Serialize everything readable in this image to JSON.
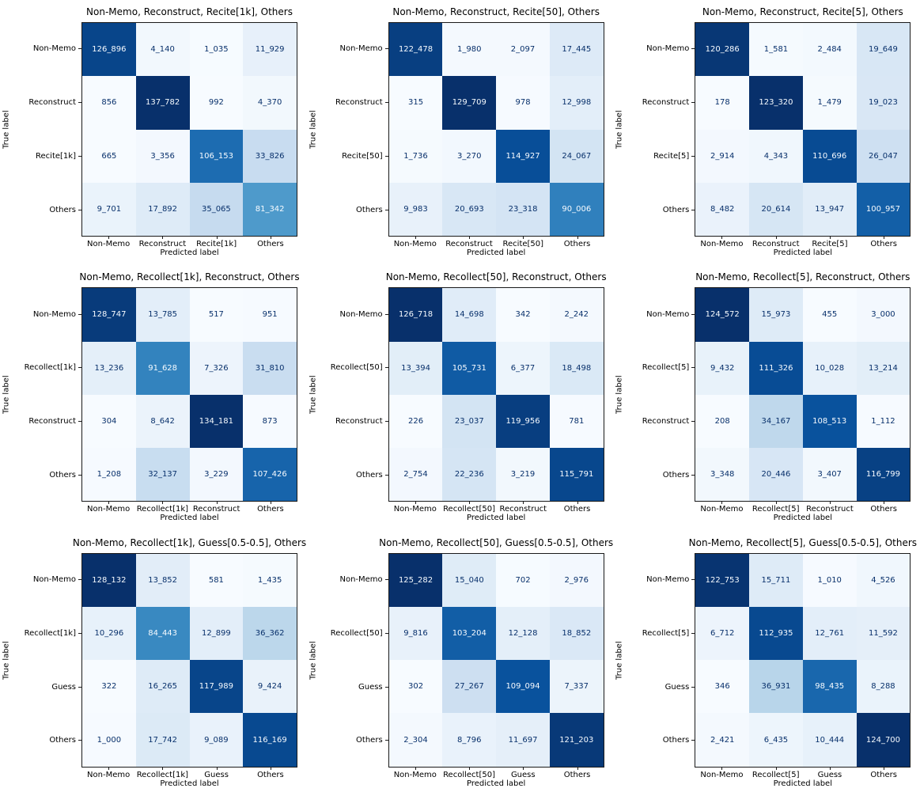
{
  "figure": {
    "type": "confusion-matrix-grid",
    "rows": 3,
    "cols": 3,
    "background": "#ffffff",
    "colormap_name": "Blues",
    "colormap_stops": [
      "#f7fbff",
      "#deebf7",
      "#c6dbef",
      "#9ecae1",
      "#6baed6",
      "#4292c6",
      "#2171b5",
      "#08519c",
      "#08306b"
    ],
    "cell_text_light": "#f7fbff",
    "cell_text_dark": "#08306b",
    "spine_color": "#1a1a1a"
  },
  "chart_data": [
    {
      "type": "heatmap",
      "title": "Non-Memo, Reconstruct, Recite[1k], Others",
      "xlabel": "Predicted label",
      "ylabel": "True label",
      "categories": [
        "Non-Memo",
        "Reconstruct",
        "Recite[1k]",
        "Others"
      ],
      "rows": [
        [
          "126_896",
          "4_140",
          "1_035",
          "11_929"
        ],
        [
          "856",
          "137_782",
          "992",
          "4_370"
        ],
        [
          "665",
          "3_356",
          "106_153",
          "33_826"
        ],
        [
          "9_701",
          "17_892",
          "35_065",
          "81_342"
        ]
      ]
    },
    {
      "type": "heatmap",
      "title": "Non-Memo, Reconstruct, Recite[50], Others",
      "xlabel": "Predicted label",
      "ylabel": "True label",
      "categories": [
        "Non-Memo",
        "Reconstruct",
        "Recite[50]",
        "Others"
      ],
      "rows": [
        [
          "122_478",
          "1_980",
          "2_097",
          "17_445"
        ],
        [
          "315",
          "129_709",
          "978",
          "12_998"
        ],
        [
          "1_736",
          "3_270",
          "114_927",
          "24_067"
        ],
        [
          "9_983",
          "20_693",
          "23_318",
          "90_006"
        ]
      ]
    },
    {
      "type": "heatmap",
      "title": "Non-Memo, Reconstruct, Recite[5], Others",
      "xlabel": "Predicted label",
      "ylabel": "True label",
      "categories": [
        "Non-Memo",
        "Reconstruct",
        "Recite[5]",
        "Others"
      ],
      "rows": [
        [
          "120_286",
          "1_581",
          "2_484",
          "19_649"
        ],
        [
          "178",
          "123_320",
          "1_479",
          "19_023"
        ],
        [
          "2_914",
          "4_343",
          "110_696",
          "26_047"
        ],
        [
          "8_482",
          "20_614",
          "13_947",
          "100_957"
        ]
      ]
    },
    {
      "type": "heatmap",
      "title": "Non-Memo, Recollect[1k], Reconstruct, Others",
      "xlabel": "Predicted label",
      "ylabel": "True label",
      "categories": [
        "Non-Memo",
        "Recollect[1k]",
        "Reconstruct",
        "Others"
      ],
      "rows": [
        [
          "128_747",
          "13_785",
          "517",
          "951"
        ],
        [
          "13_236",
          "91_628",
          "7_326",
          "31_810"
        ],
        [
          "304",
          "8_642",
          "134_181",
          "873"
        ],
        [
          "1_208",
          "32_137",
          "3_229",
          "107_426"
        ]
      ]
    },
    {
      "type": "heatmap",
      "title": "Non-Memo, Recollect[50], Reconstruct, Others",
      "xlabel": "Predicted label",
      "ylabel": "True label",
      "categories": [
        "Non-Memo",
        "Recollect[50]",
        "Reconstruct",
        "Others"
      ],
      "rows": [
        [
          "126_718",
          "14_698",
          "342",
          "2_242"
        ],
        [
          "13_394",
          "105_731",
          "6_377",
          "18_498"
        ],
        [
          "226",
          "23_037",
          "119_956",
          "781"
        ],
        [
          "2_754",
          "22_236",
          "3_219",
          "115_791"
        ]
      ]
    },
    {
      "type": "heatmap",
      "title": "Non-Memo, Recollect[5], Reconstruct, Others",
      "xlabel": "Predicted label",
      "ylabel": "True label",
      "categories": [
        "Non-Memo",
        "Recollect[5]",
        "Reconstruct",
        "Others"
      ],
      "rows": [
        [
          "124_572",
          "15_973",
          "455",
          "3_000"
        ],
        [
          "9_432",
          "111_326",
          "10_028",
          "13_214"
        ],
        [
          "208",
          "34_167",
          "108_513",
          "1_112"
        ],
        [
          "3_348",
          "20_446",
          "3_407",
          "116_799"
        ]
      ]
    },
    {
      "type": "heatmap",
      "title": "Non-Memo, Recollect[1k], Guess[0.5-0.5], Others",
      "xlabel": "Predicted label",
      "ylabel": "True label",
      "categories": [
        "Non-Memo",
        "Recollect[1k]",
        "Guess",
        "Others"
      ],
      "rows": [
        [
          "128_132",
          "13_852",
          "581",
          "1_435"
        ],
        [
          "10_296",
          "84_443",
          "12_899",
          "36_362"
        ],
        [
          "322",
          "16_265",
          "117_989",
          "9_424"
        ],
        [
          "1_000",
          "17_742",
          "9_089",
          "116_169"
        ]
      ]
    },
    {
      "type": "heatmap",
      "title": "Non-Memo, Recollect[50], Guess[0.5-0.5], Others",
      "xlabel": "Predicted label",
      "ylabel": "True label",
      "categories": [
        "Non-Memo",
        "Recollect[50]",
        "Guess",
        "Others"
      ],
      "rows": [
        [
          "125_282",
          "15_040",
          "702",
          "2_976"
        ],
        [
          "9_816",
          "103_204",
          "12_128",
          "18_852"
        ],
        [
          "302",
          "27_267",
          "109_094",
          "7_337"
        ],
        [
          "2_304",
          "8_796",
          "11_697",
          "121_203"
        ]
      ]
    },
    {
      "type": "heatmap",
      "title": "Non-Memo, Recollect[5], Guess[0.5-0.5], Others",
      "xlabel": "Predicted label",
      "ylabel": "True label",
      "categories": [
        "Non-Memo",
        "Recollect[5]",
        "Guess",
        "Others"
      ],
      "rows": [
        [
          "122_753",
          "15_711",
          "1_010",
          "4_526"
        ],
        [
          "6_712",
          "112_935",
          "12_761",
          "11_592"
        ],
        [
          "346",
          "36_931",
          "98_435",
          "8_288"
        ],
        [
          "2_421",
          "6_435",
          "10_444",
          "124_700"
        ]
      ]
    }
  ]
}
